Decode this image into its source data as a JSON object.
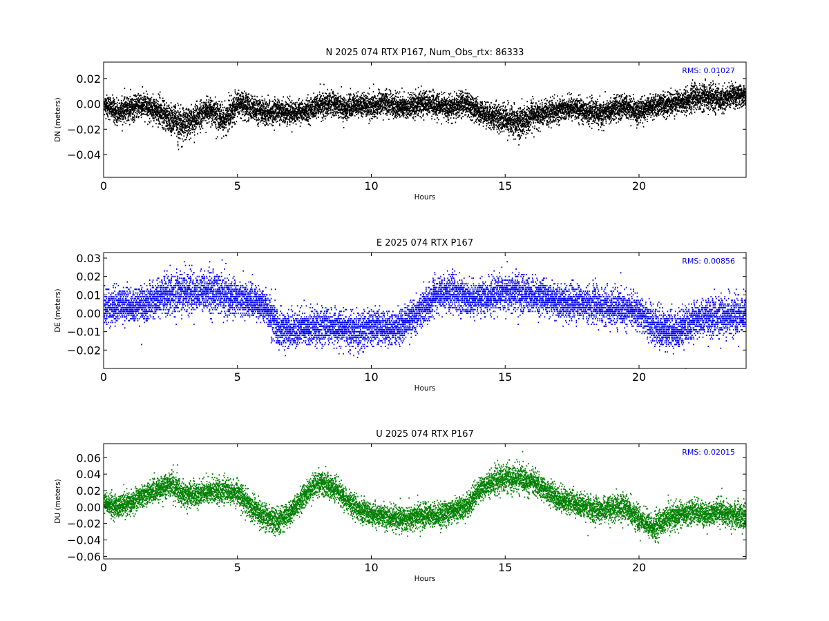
{
  "chart_data": [
    {
      "type": "scatter",
      "title": "N 2025 074 RTX  P167, Num_Obs_rtx: 86333",
      "xlabel": "Hours",
      "ylabel": "DN (meters)",
      "xlim": [
        0,
        24
      ],
      "ylim": [
        -0.058,
        0.033
      ],
      "xticks": [
        0,
        5,
        10,
        15,
        20
      ],
      "yticks": [
        0.02,
        0.0,
        -0.02,
        -0.04
      ],
      "ytick_labels": [
        "0.02",
        "0.00",
        "−0.02",
        "−0.04"
      ],
      "annotation": "RMS:  0.01027",
      "color": "#000000",
      "annotation_color": "#0000ff",
      "series": [
        {
          "x": [
            0,
            0.5,
            1,
            1.5,
            2,
            2.5,
            3,
            3.5,
            4,
            4.5,
            5,
            5.5,
            6,
            6.5,
            7,
            7.5,
            8,
            8.5,
            9,
            9.5,
            10,
            10.5,
            11,
            11.5,
            12,
            12.5,
            13,
            13.5,
            14,
            14.5,
            15,
            15.5,
            16,
            16.5,
            17,
            17.5,
            18,
            18.5,
            19,
            19.5,
            20,
            20.5,
            21,
            21.5,
            22,
            22.5,
            23,
            23.5,
            24
          ],
          "center": [
            0.0,
            -0.007,
            -0.003,
            -0.001,
            -0.006,
            -0.012,
            -0.017,
            -0.01,
            -0.005,
            -0.013,
            0.0,
            -0.003,
            -0.008,
            -0.005,
            -0.007,
            -0.006,
            -0.002,
            0.001,
            -0.004,
            -0.001,
            -0.002,
            0.002,
            -0.003,
            -0.001,
            0.0,
            -0.002,
            -0.003,
            0.001,
            -0.006,
            -0.009,
            -0.012,
            -0.015,
            -0.01,
            -0.007,
            -0.005,
            -0.003,
            -0.006,
            -0.008,
            -0.004,
            -0.002,
            -0.006,
            -0.002,
            0.0,
            0.001,
            0.004,
            0.006,
            0.003,
            0.006,
            0.006
          ],
          "spread": [
            0.008,
            0.009,
            0.009,
            0.009,
            0.01,
            0.012,
            0.013,
            0.011,
            0.01,
            0.011,
            0.01,
            0.01,
            0.009,
            0.009,
            0.009,
            0.008,
            0.009,
            0.009,
            0.009,
            0.009,
            0.009,
            0.009,
            0.009,
            0.009,
            0.009,
            0.009,
            0.009,
            0.009,
            0.009,
            0.01,
            0.011,
            0.012,
            0.011,
            0.01,
            0.009,
            0.009,
            0.009,
            0.01,
            0.009,
            0.009,
            0.009,
            0.009,
            0.009,
            0.009,
            0.01,
            0.01,
            0.009,
            0.009,
            0.009
          ]
        }
      ]
    },
    {
      "type": "scatter",
      "title": "E 2025 074 RTX  P167",
      "xlabel": "Hours",
      "ylabel": "DE (meters)",
      "xlim": [
        0,
        24
      ],
      "ylim": [
        -0.03,
        0.033
      ],
      "xticks": [
        0,
        5,
        10,
        15,
        20
      ],
      "yticks": [
        0.03,
        0.02,
        0.01,
        0.0,
        -0.01,
        -0.02
      ],
      "ytick_labels": [
        "0.03",
        "0.02",
        "0.01",
        "0.00",
        "−0.01",
        "−0.02"
      ],
      "annotation": "RMS:  0.00856",
      "color": "#0000ff",
      "annotation_color": "#0000ff",
      "series": [
        {
          "x": [
            0,
            0.5,
            1,
            1.5,
            2,
            2.5,
            3,
            3.5,
            4,
            4.5,
            5,
            5.5,
            6,
            6.5,
            7,
            7.5,
            8,
            8.5,
            9,
            9.5,
            10,
            10.5,
            11,
            11.5,
            12,
            12.5,
            13,
            13.5,
            14,
            14.5,
            15,
            15.5,
            16,
            16.5,
            17,
            17.5,
            18,
            18.5,
            19,
            19.5,
            20,
            20.5,
            21,
            21.5,
            22,
            22.5,
            23,
            23.5,
            24
          ],
          "center": [
            0.003,
            0.004,
            0.004,
            0.005,
            0.008,
            0.01,
            0.012,
            0.011,
            0.012,
            0.009,
            0.008,
            0.006,
            0.004,
            -0.008,
            -0.009,
            -0.008,
            -0.007,
            -0.008,
            -0.009,
            -0.01,
            -0.007,
            -0.008,
            -0.007,
            -0.003,
            0.004,
            0.01,
            0.012,
            0.008,
            0.008,
            0.009,
            0.012,
            0.011,
            0.01,
            0.008,
            0.006,
            0.006,
            0.005,
            0.004,
            0.003,
            0.002,
            0.0,
            -0.006,
            -0.01,
            -0.009,
            -0.004,
            -0.003,
            -0.002,
            -0.001,
            0.0
          ],
          "spread": [
            0.009,
            0.009,
            0.009,
            0.009,
            0.01,
            0.01,
            0.011,
            0.01,
            0.011,
            0.01,
            0.009,
            0.009,
            0.009,
            0.01,
            0.009,
            0.009,
            0.009,
            0.009,
            0.009,
            0.01,
            0.009,
            0.009,
            0.009,
            0.009,
            0.009,
            0.01,
            0.01,
            0.009,
            0.009,
            0.009,
            0.01,
            0.01,
            0.009,
            0.009,
            0.009,
            0.009,
            0.009,
            0.009,
            0.009,
            0.009,
            0.009,
            0.01,
            0.01,
            0.01,
            0.009,
            0.01,
            0.01,
            0.01,
            0.01
          ]
        }
      ]
    },
    {
      "type": "scatter",
      "title": "U 2025 074 RTX  P167",
      "xlabel": "Hours",
      "ylabel": "DU (meters)",
      "xlim": [
        0,
        24
      ],
      "ylim": [
        -0.063,
        0.077
      ],
      "xticks": [
        0,
        5,
        10,
        15,
        20
      ],
      "yticks": [
        0.06,
        0.04,
        0.02,
        0.0,
        -0.02,
        -0.04,
        -0.06
      ],
      "ytick_labels": [
        "0.06",
        "0.04",
        "0.02",
        "0.00",
        "−0.02",
        "−0.04",
        "−0.06"
      ],
      "annotation": "RMS:  0.02015",
      "color": "#008000",
      "annotation_color": "#0000ff",
      "series": [
        {
          "x": [
            0,
            0.5,
            1,
            1.5,
            2,
            2.5,
            3,
            3.5,
            4,
            4.5,
            5,
            5.5,
            6,
            6.5,
            7,
            7.5,
            8,
            8.5,
            9,
            9.5,
            10,
            10.5,
            11,
            11.5,
            12,
            12.5,
            13,
            13.5,
            14,
            14.5,
            15,
            15.5,
            16,
            16.5,
            17,
            17.5,
            18,
            18.5,
            19,
            19.5,
            20,
            20.5,
            21,
            21.5,
            22,
            22.5,
            23,
            23.5,
            24
          ],
          "center": [
            0.005,
            0.0,
            0.005,
            0.015,
            0.02,
            0.028,
            0.015,
            0.015,
            0.02,
            0.02,
            0.015,
            0.0,
            -0.012,
            -0.018,
            -0.005,
            0.015,
            0.03,
            0.025,
            0.01,
            -0.003,
            -0.008,
            -0.012,
            -0.015,
            -0.013,
            -0.01,
            -0.01,
            -0.005,
            0.0,
            0.02,
            0.03,
            0.035,
            0.035,
            0.03,
            0.02,
            0.01,
            0.005,
            0.0,
            -0.005,
            -0.002,
            0.0,
            -0.015,
            -0.025,
            -0.015,
            -0.01,
            -0.005,
            -0.01,
            -0.005,
            -0.01,
            -0.012
          ],
          "spread": [
            0.012,
            0.013,
            0.013,
            0.013,
            0.014,
            0.016,
            0.015,
            0.014,
            0.014,
            0.014,
            0.015,
            0.015,
            0.015,
            0.015,
            0.014,
            0.014,
            0.015,
            0.014,
            0.014,
            0.014,
            0.014,
            0.014,
            0.014,
            0.015,
            0.014,
            0.014,
            0.014,
            0.014,
            0.014,
            0.015,
            0.016,
            0.016,
            0.015,
            0.014,
            0.014,
            0.014,
            0.014,
            0.015,
            0.015,
            0.015,
            0.015,
            0.015,
            0.015,
            0.015,
            0.015,
            0.015,
            0.015,
            0.015,
            0.016
          ]
        }
      ]
    }
  ]
}
